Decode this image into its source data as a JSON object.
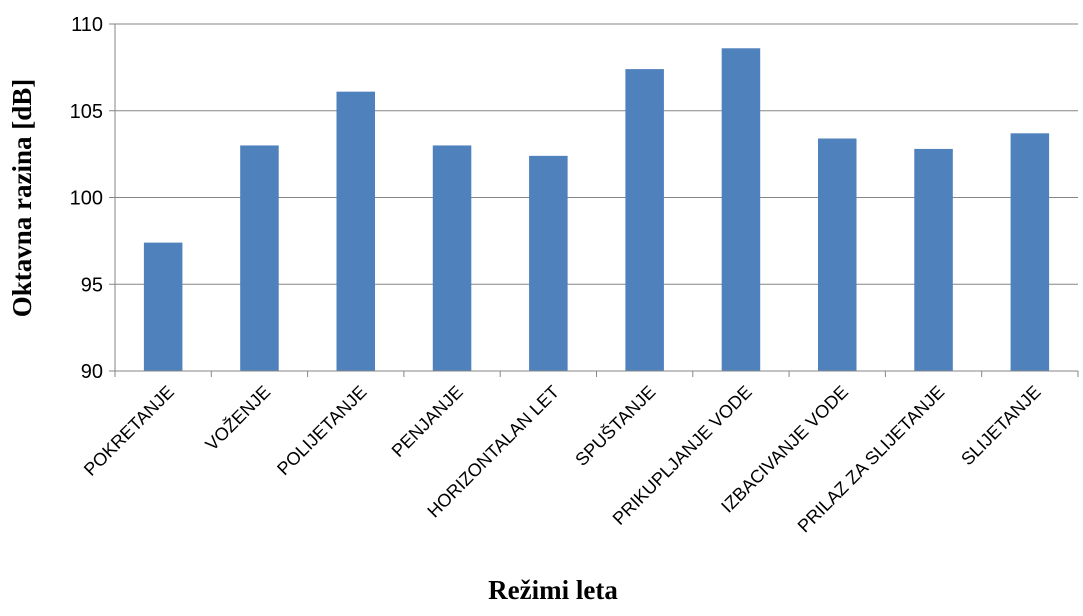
{
  "chart_data": {
    "type": "bar",
    "title": "",
    "xlabel": "Režimi leta",
    "ylabel": "Oktavna razina [dB]",
    "ylim": [
      90,
      110
    ],
    "yticks": [
      "90",
      "95",
      "100",
      "105",
      "110"
    ],
    "grid": true,
    "legend": "none",
    "categories": [
      "POKRETANJE",
      "VOŽENJE",
      "POLIJETANJE",
      "PENJANJE",
      "HORIZONTALAN LET",
      "SPUŠTANJE",
      "PRIKUPLJANJE VODE",
      "IZBACIVANJE VODE",
      "PRILAZ ZA SLIJETANJE",
      "SLIJETANJE"
    ],
    "values": [
      97.4,
      103.0,
      106.1,
      103.0,
      102.4,
      107.4,
      108.6,
      103.4,
      102.8,
      103.7
    ],
    "colors": {
      "bar": "#4f81bd",
      "grid": "#868686",
      "axis": "#868686"
    }
  }
}
